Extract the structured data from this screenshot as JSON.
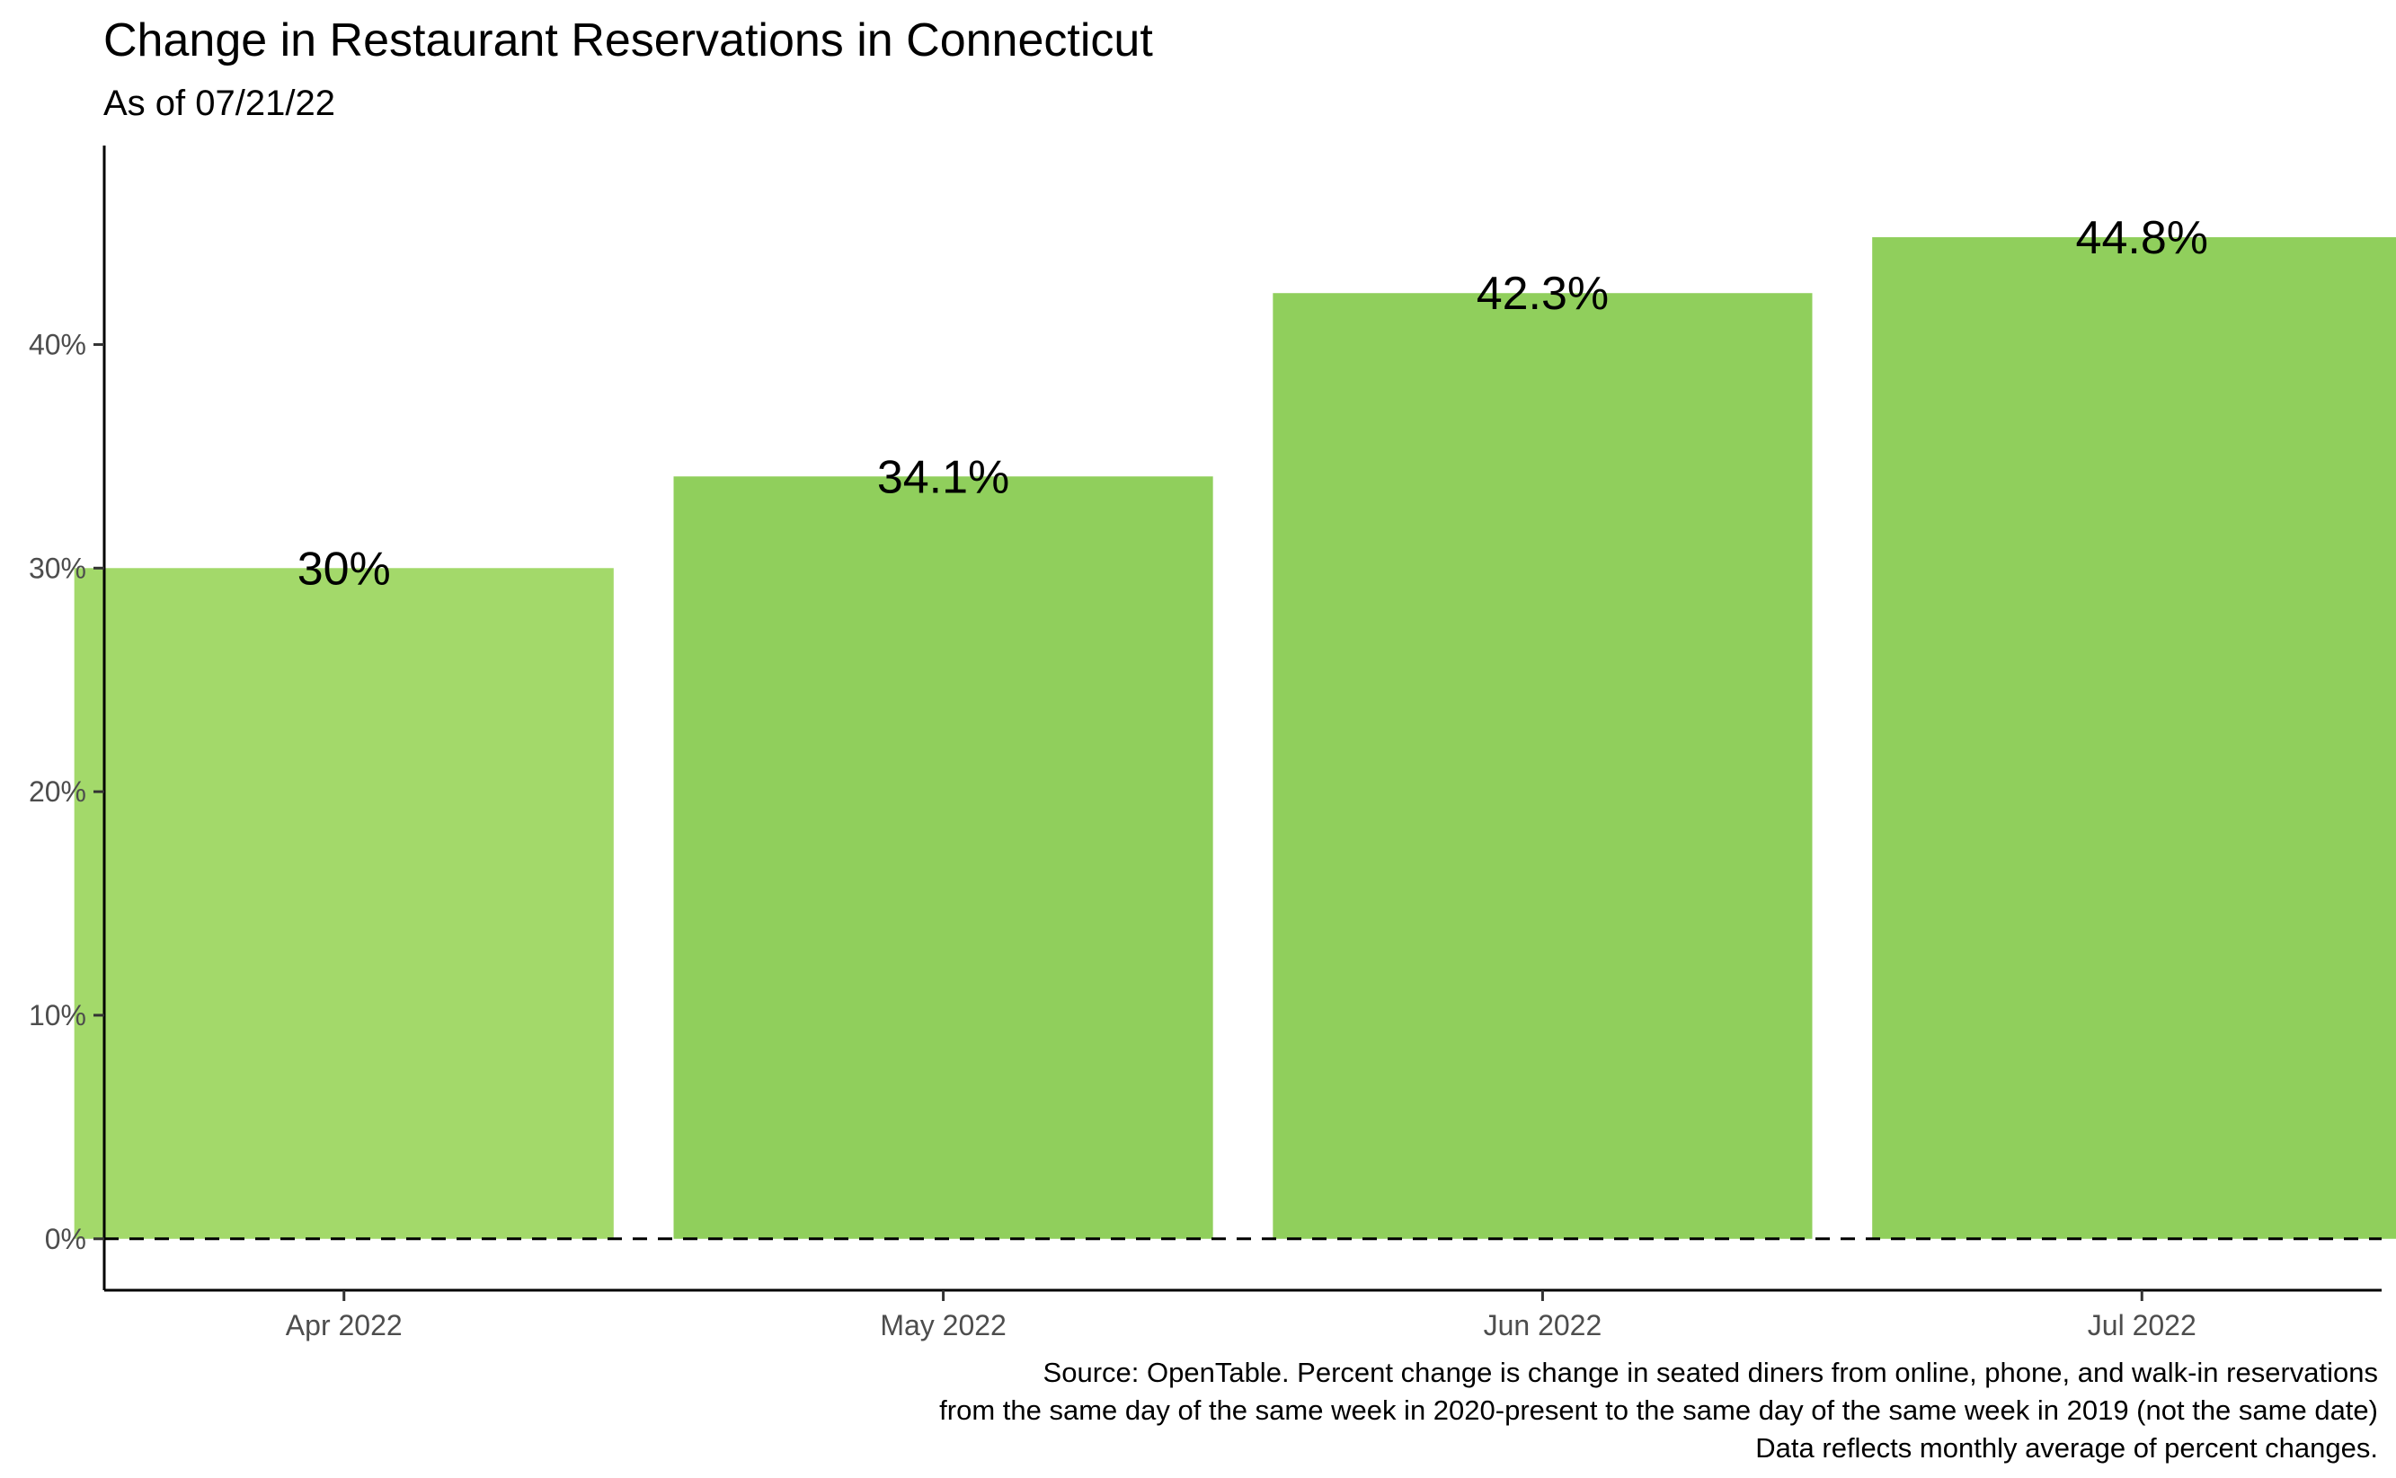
{
  "chart_data": {
    "type": "bar",
    "title": "Change in Restaurant Reservations in Connecticut",
    "subtitle": "As of 07/21/22",
    "xlabel": "",
    "ylabel": "",
    "categories": [
      "Apr 2022",
      "May 2022",
      "Jun 2022",
      "Jul 2022"
    ],
    "values": [
      30.0,
      34.1,
      42.3,
      44.8
    ],
    "data_labels": [
      "30%",
      "34.1%",
      "42.3%",
      "44.8%"
    ],
    "ylim": [
      -2.3,
      48.9
    ],
    "y_ticks": [
      0,
      10,
      20,
      30,
      40
    ],
    "y_tick_labels": [
      "0%",
      "10%",
      "20%",
      "30%",
      "40%"
    ],
    "reference_line": {
      "y": 0,
      "style": "dashed"
    },
    "grid": false,
    "legend": "none",
    "colors": {
      "bar_first": "#a3d96a",
      "bar_rest": "#90cf5c",
      "axis": "#000000",
      "tick_text": "#4d4d4d"
    },
    "caption": [
      "Source: OpenTable. Percent change is change in seated diners from online, phone, and walk-in reservations",
      "from the same day of the same week in 2020-present to the same day of the same week in 2019 (not the same date)",
      "Data reflects monthly average of percent changes."
    ]
  }
}
